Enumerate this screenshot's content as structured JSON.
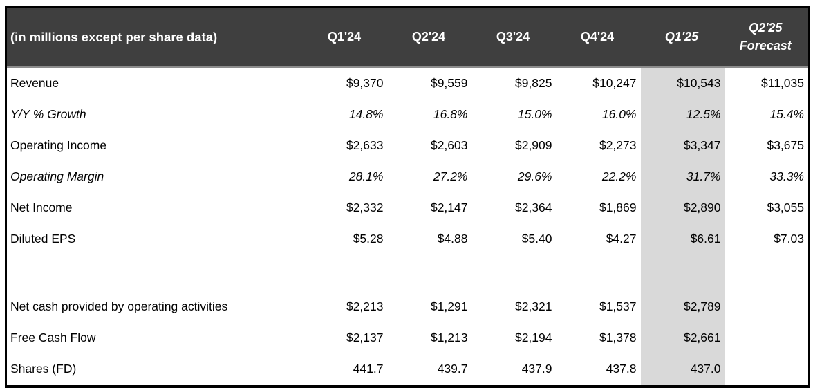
{
  "table": {
    "title": "(in millions except per share data)",
    "header": {
      "columns": [
        {
          "label": "Q1'24",
          "italic": false,
          "highlight": false
        },
        {
          "label": "Q2'24",
          "italic": false,
          "highlight": false
        },
        {
          "label": "Q3'24",
          "italic": false,
          "highlight": false
        },
        {
          "label": "Q4'24",
          "italic": false,
          "highlight": false
        },
        {
          "label": "Q1'25",
          "italic": true,
          "highlight": true
        },
        {
          "label": "Q2'25\nForecast",
          "italic": true,
          "highlight": false
        }
      ]
    },
    "rows": [
      {
        "label": "Revenue",
        "style": "normal",
        "values": [
          "$9,370",
          "$9,559",
          "$9,825",
          "$10,247",
          "$10,543",
          "$11,035"
        ]
      },
      {
        "label": "Y/Y % Growth",
        "style": "italic",
        "values": [
          "14.8%",
          "16.8%",
          "15.0%",
          "16.0%",
          "12.5%",
          "15.4%"
        ]
      },
      {
        "label": "Operating Income",
        "style": "normal",
        "values": [
          "$2,633",
          "$2,603",
          "$2,909",
          "$2,273",
          "$3,347",
          "$3,675"
        ]
      },
      {
        "label": "Operating Margin",
        "style": "italic",
        "values": [
          "28.1%",
          "27.2%",
          "29.6%",
          "22.2%",
          "31.7%",
          "33.3%"
        ]
      },
      {
        "label": "Net Income",
        "style": "normal",
        "values": [
          "$2,332",
          "$2,147",
          "$2,364",
          "$1,869",
          "$2,890",
          "$3,055"
        ]
      },
      {
        "label": "Diluted EPS",
        "style": "normal",
        "values": [
          "$5.28",
          "$4.88",
          "$5.40",
          "$4.27",
          "$6.61",
          "$7.03"
        ]
      },
      {
        "label": "",
        "style": "spacer",
        "values": [
          "",
          "",
          "",
          "",
          "",
          ""
        ]
      },
      {
        "label": "Net cash provided by operating activities",
        "style": "normal",
        "values": [
          "$2,213",
          "$1,291",
          "$2,321",
          "$1,537",
          "$2,789",
          ""
        ]
      },
      {
        "label": "Free Cash Flow",
        "style": "normal",
        "values": [
          "$2,137",
          "$1,213",
          "$2,194",
          "$1,378",
          "$2,661",
          ""
        ]
      },
      {
        "label": "Shares (FD)",
        "style": "normal",
        "values": [
          "441.7",
          "439.7",
          "437.9",
          "437.8",
          "437.0",
          ""
        ]
      }
    ],
    "colors": {
      "header_bg": "#3f3f3f",
      "header_text": "#ffffff",
      "highlight_bg": "#d9d9d9",
      "border": "#000000",
      "body_text": "#000000"
    }
  },
  "chart_data": {
    "type": "table",
    "title": "(in millions except per share data)",
    "columns": [
      "Q1'24",
      "Q2'24",
      "Q3'24",
      "Q4'24",
      "Q1'25",
      "Q2'25 Forecast"
    ],
    "highlight_column": "Q1'25",
    "rows": [
      {
        "metric": "Revenue",
        "unit": "$M",
        "values": [
          9370,
          9559,
          9825,
          10247,
          10543,
          11035
        ]
      },
      {
        "metric": "Y/Y % Growth",
        "unit": "%",
        "values": [
          14.8,
          16.8,
          15.0,
          16.0,
          12.5,
          15.4
        ]
      },
      {
        "metric": "Operating Income",
        "unit": "$M",
        "values": [
          2633,
          2603,
          2909,
          2273,
          3347,
          3675
        ]
      },
      {
        "metric": "Operating Margin",
        "unit": "%",
        "values": [
          28.1,
          27.2,
          29.6,
          22.2,
          31.7,
          33.3
        ]
      },
      {
        "metric": "Net Income",
        "unit": "$M",
        "values": [
          2332,
          2147,
          2364,
          1869,
          2890,
          3055
        ]
      },
      {
        "metric": "Diluted EPS",
        "unit": "$",
        "values": [
          5.28,
          4.88,
          5.4,
          4.27,
          6.61,
          7.03
        ]
      },
      {
        "metric": "Net cash provided by operating activities",
        "unit": "$M",
        "values": [
          2213,
          1291,
          2321,
          1537,
          2789,
          null
        ]
      },
      {
        "metric": "Free Cash Flow",
        "unit": "$M",
        "values": [
          2137,
          1213,
          2194,
          1378,
          2661,
          null
        ]
      },
      {
        "metric": "Shares (FD)",
        "unit": "M shares",
        "values": [
          441.7,
          439.7,
          437.9,
          437.8,
          437.0,
          null
        ]
      }
    ]
  }
}
